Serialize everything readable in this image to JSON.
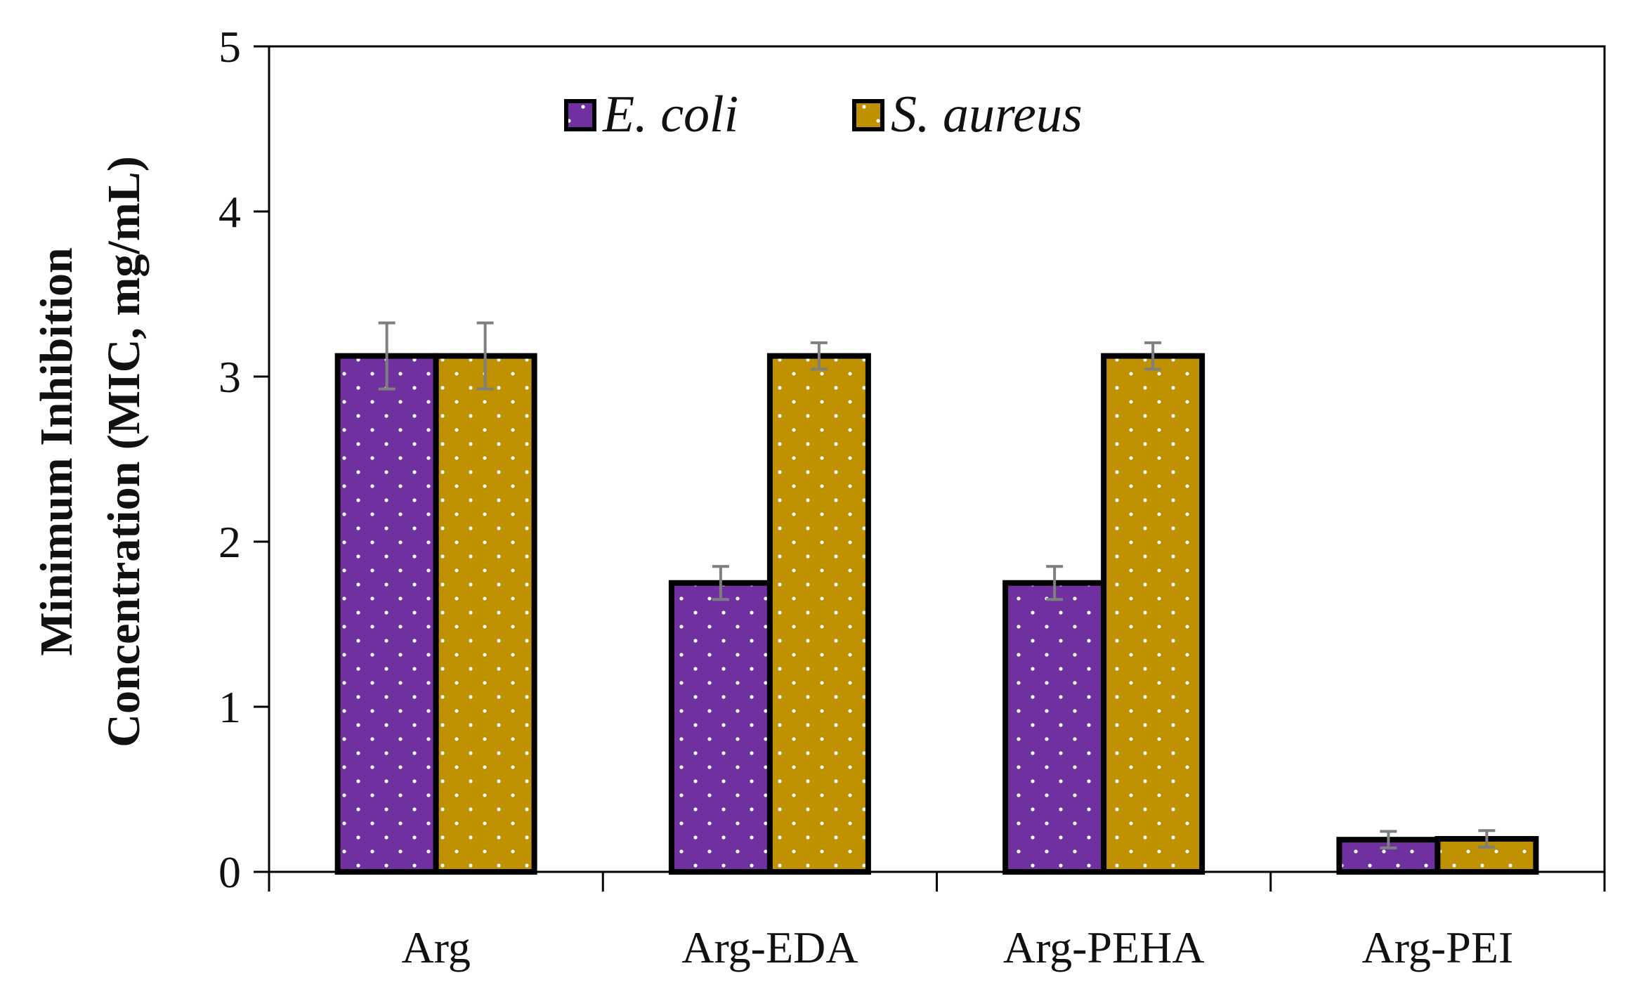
{
  "chart_data": {
    "type": "bar",
    "title": "",
    "xlabel": "",
    "ylabel_lines": [
      "Minimum Inhibition",
      "Concentration (MIC, mg/mL)"
    ],
    "categories": [
      "Arg",
      "Arg-EDA",
      "Arg-PEHA",
      "Arg-PEI"
    ],
    "series": [
      {
        "name": "E. coli",
        "color": "#7030a0",
        "values": [
          3.125,
          1.75,
          1.75,
          0.195
        ],
        "errors": [
          0.2,
          0.1,
          0.1,
          0.05
        ]
      },
      {
        "name": "S. aureus",
        "color": "#bf9000",
        "values": [
          3.125,
          3.125,
          3.125,
          0.2
        ],
        "errors": [
          0.2,
          0.08,
          0.08,
          0.05
        ]
      }
    ],
    "ylim": [
      0,
      5
    ],
    "yticks": [
      0,
      1,
      2,
      3,
      4,
      5
    ],
    "grid": false,
    "legend_position": "top-center",
    "error_bar_color": "#7f7f7f"
  }
}
